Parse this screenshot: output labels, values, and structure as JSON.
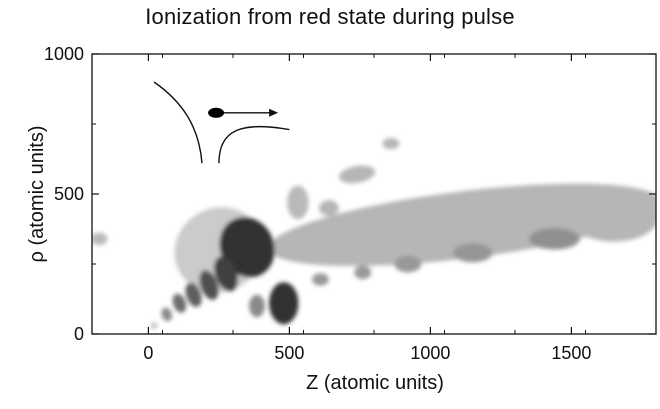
{
  "chart_data": {
    "type": "heatmap",
    "title": "Ionization from red state during pulse",
    "xlabel": "Z (atomic units)",
    "ylabel": "ρ (atomic units)",
    "xlim": [
      -200,
      1800
    ],
    "ylim": [
      0,
      1000
    ],
    "x_ticks": [
      {
        "value": 0,
        "label": "0"
      },
      {
        "value": 500,
        "label": "500"
      },
      {
        "value": 1000,
        "label": "1000"
      },
      {
        "value": 1500,
        "label": "1500"
      }
    ],
    "y_ticks": [
      {
        "value": 0,
        "label": "0"
      },
      {
        "value": 500,
        "label": "500"
      },
      {
        "value": 1000,
        "label": "1000"
      }
    ],
    "grid": false,
    "colormap": {
      "low": "#ffffff",
      "mid": "#a8a8a8",
      "high": "#141414"
    },
    "blobs": [
      {
        "cx": 1120,
        "cy": 390,
        "rx": 700,
        "ry": 120,
        "rot": -7,
        "level": 0.42
      },
      {
        "cx": 1650,
        "cy": 420,
        "rx": 160,
        "ry": 90,
        "rot": 0,
        "level": 0.42
      },
      {
        "cx": 1440,
        "cy": 340,
        "rx": 90,
        "ry": 38,
        "rot": 0,
        "level": 0.58
      },
      {
        "cx": 1150,
        "cy": 290,
        "rx": 70,
        "ry": 34,
        "rot": 0,
        "level": 0.56
      },
      {
        "cx": 920,
        "cy": 250,
        "rx": 48,
        "ry": 30,
        "rot": 0,
        "level": 0.55
      },
      {
        "cx": 760,
        "cy": 220,
        "rx": 30,
        "ry": 24,
        "rot": 0,
        "level": 0.55
      },
      {
        "cx": 610,
        "cy": 195,
        "rx": 30,
        "ry": 22,
        "rot": 0,
        "level": 0.55
      },
      {
        "cx": 640,
        "cy": 450,
        "rx": 35,
        "ry": 28,
        "rot": 0,
        "level": 0.42
      },
      {
        "cx": 740,
        "cy": 570,
        "rx": 65,
        "ry": 30,
        "rot": -10,
        "level": 0.42
      },
      {
        "cx": 860,
        "cy": 680,
        "rx": 30,
        "ry": 20,
        "rot": 0,
        "level": 0.42
      },
      {
        "cx": 530,
        "cy": 470,
        "rx": 38,
        "ry": 60,
        "rot": 0,
        "level": 0.4
      },
      {
        "cx": -175,
        "cy": 340,
        "rx": 30,
        "ry": 22,
        "rot": 0,
        "level": 0.4
      },
      {
        "cx": 250,
        "cy": 300,
        "rx": 160,
        "ry": 150,
        "rot": -30,
        "level": 0.3
      },
      {
        "cx": 350,
        "cy": 310,
        "rx": 95,
        "ry": 110,
        "rot": -25,
        "level": 0.9
      },
      {
        "cx": 480,
        "cy": 110,
        "rx": 52,
        "ry": 75,
        "rot": 0,
        "level": 0.9
      },
      {
        "cx": 275,
        "cy": 215,
        "rx": 38,
        "ry": 65,
        "rot": -20,
        "level": 0.85
      },
      {
        "cx": 215,
        "cy": 175,
        "rx": 30,
        "ry": 55,
        "rot": -20,
        "level": 0.8
      },
      {
        "cx": 160,
        "cy": 140,
        "rx": 26,
        "ry": 45,
        "rot": -20,
        "level": 0.75
      },
      {
        "cx": 110,
        "cy": 110,
        "rx": 22,
        "ry": 35,
        "rot": -20,
        "level": 0.7
      },
      {
        "cx": 65,
        "cy": 70,
        "rx": 18,
        "ry": 25,
        "rot": -20,
        "level": 0.6
      },
      {
        "cx": 385,
        "cy": 100,
        "rx": 28,
        "ry": 40,
        "rot": 0,
        "level": 0.6
      },
      {
        "cx": 20,
        "cy": 30,
        "rx": 12,
        "ry": 12,
        "rot": 0,
        "level": 0.35
      }
    ],
    "annotation": {
      "arrow": {
        "from": [
          240,
          790
        ],
        "to": [
          460,
          790
        ]
      },
      "electron": {
        "x": 240,
        "y": 790
      },
      "curve_left": [
        [
          20,
          900
        ],
        [
          120,
          830
        ],
        [
          180,
          740
        ],
        [
          190,
          610
        ]
      ],
      "curve_right": [
        [
          250,
          610
        ],
        [
          250,
          730
        ],
        [
          330,
          760
        ],
        [
          500,
          730
        ]
      ]
    }
  }
}
